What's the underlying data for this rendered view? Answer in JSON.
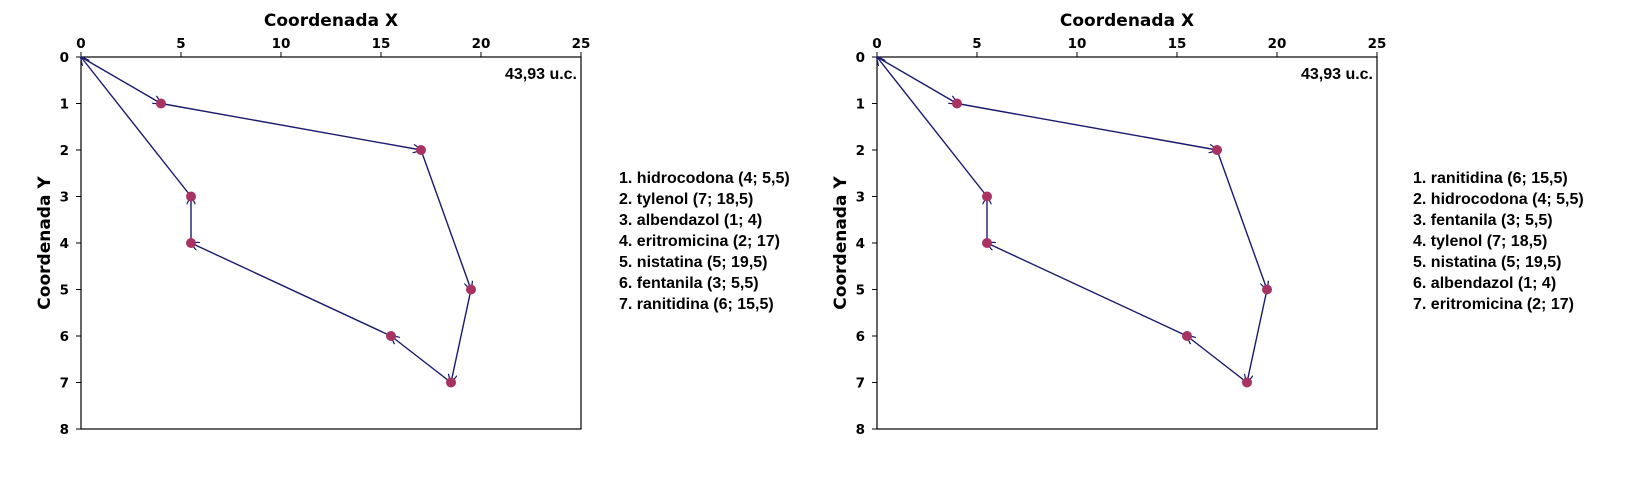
{
  "chart_data": [
    {
      "type": "line",
      "xlabel": "Coordenada X",
      "ylabel": "Coordenada Y",
      "xlim": [
        0,
        25
      ],
      "ylim": [
        0,
        8
      ],
      "y_inverted": true,
      "x_axis_position": "top",
      "x_ticks": [
        0,
        5,
        10,
        15,
        20,
        25
      ],
      "y_ticks": [
        0,
        1,
        2,
        3,
        4,
        5,
        6,
        7,
        8
      ],
      "grid": false,
      "annotation": "43,93 u.c.",
      "route_color": "#1a1a6e",
      "point_color": "#a83262",
      "route": [
        {
          "x": 0,
          "y": 0
        },
        {
          "x": 4,
          "y": 1
        },
        {
          "x": 17,
          "y": 2
        },
        {
          "x": 19.5,
          "y": 5
        },
        {
          "x": 18.5,
          "y": 7
        },
        {
          "x": 15.5,
          "y": 6
        },
        {
          "x": 5.5,
          "y": 4
        },
        {
          "x": 5.5,
          "y": 3
        },
        {
          "x": 0,
          "y": 0
        }
      ],
      "legend": [
        "1. hidrocodona (4; 5,5)",
        "2. tylenol (7; 18,5)",
        "3. albendazol (1; 4)",
        "4. eritromicina (2; 17)",
        "5. nistatina (5; 19,5)",
        "6. fentanila (3; 5,5)",
        "7. ranitidina (6; 15,5)"
      ]
    },
    {
      "type": "line",
      "xlabel": "Coordenada X",
      "ylabel": "Coordenada Y",
      "xlim": [
        0,
        25
      ],
      "ylim": [
        0,
        8
      ],
      "y_inverted": true,
      "x_axis_position": "top",
      "x_ticks": [
        0,
        5,
        10,
        15,
        20,
        25
      ],
      "y_ticks": [
        0,
        1,
        2,
        3,
        4,
        5,
        6,
        7,
        8
      ],
      "grid": false,
      "annotation": "43,93 u.c.",
      "route_color": "#1a1a6e",
      "point_color": "#a83262",
      "route": [
        {
          "x": 0,
          "y": 0
        },
        {
          "x": 4,
          "y": 1
        },
        {
          "x": 17,
          "y": 2
        },
        {
          "x": 19.5,
          "y": 5
        },
        {
          "x": 18.5,
          "y": 7
        },
        {
          "x": 15.5,
          "y": 6
        },
        {
          "x": 5.5,
          "y": 4
        },
        {
          "x": 5.5,
          "y": 3
        },
        {
          "x": 0,
          "y": 0
        }
      ],
      "legend": [
        "1. ranitidina (6; 15,5)",
        "2. hidrocodona (4; 5,5)",
        "3. fentanila (3; 5,5)",
        "4. tylenol (7; 18,5)",
        "5. nistatina (5; 19,5)",
        "6. albendazol (1; 4)",
        "7. eritromicina (2; 17)"
      ]
    }
  ]
}
